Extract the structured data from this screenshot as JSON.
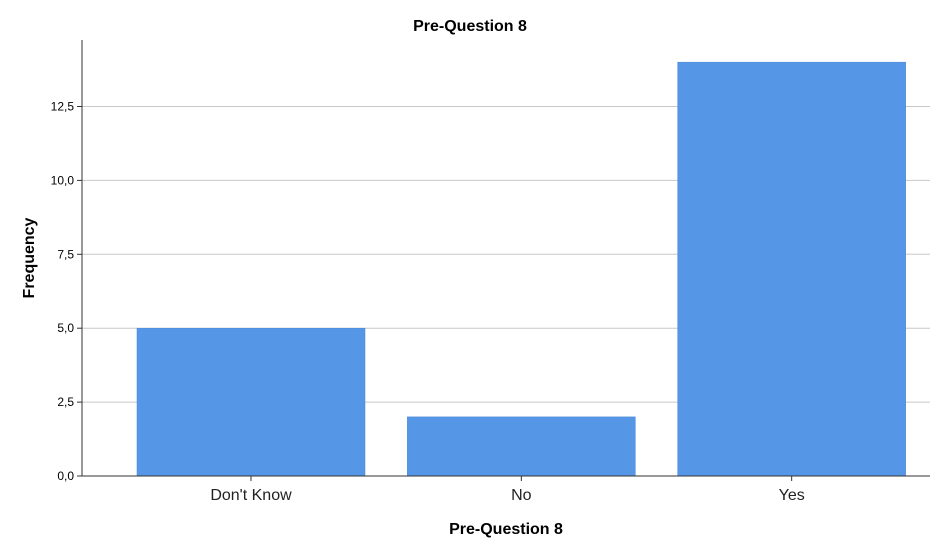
{
  "chart_data": {
    "type": "bar",
    "title": "Pre-Question 8",
    "xlabel": "Pre-Question 8",
    "ylabel": "Frequency",
    "categories": [
      "Don't Know",
      "No",
      "Yes"
    ],
    "values": [
      5,
      2,
      14
    ],
    "ylim": [
      0,
      14.75
    ],
    "yticks": [
      0,
      2.5,
      5,
      7.5,
      10,
      12.5
    ],
    "ytick_labels": [
      "0,0",
      "2,5",
      "5,0",
      "7,5",
      "10,0",
      "12,5"
    ],
    "grid": true,
    "legend": "none",
    "bar_color": "#5596e6"
  }
}
